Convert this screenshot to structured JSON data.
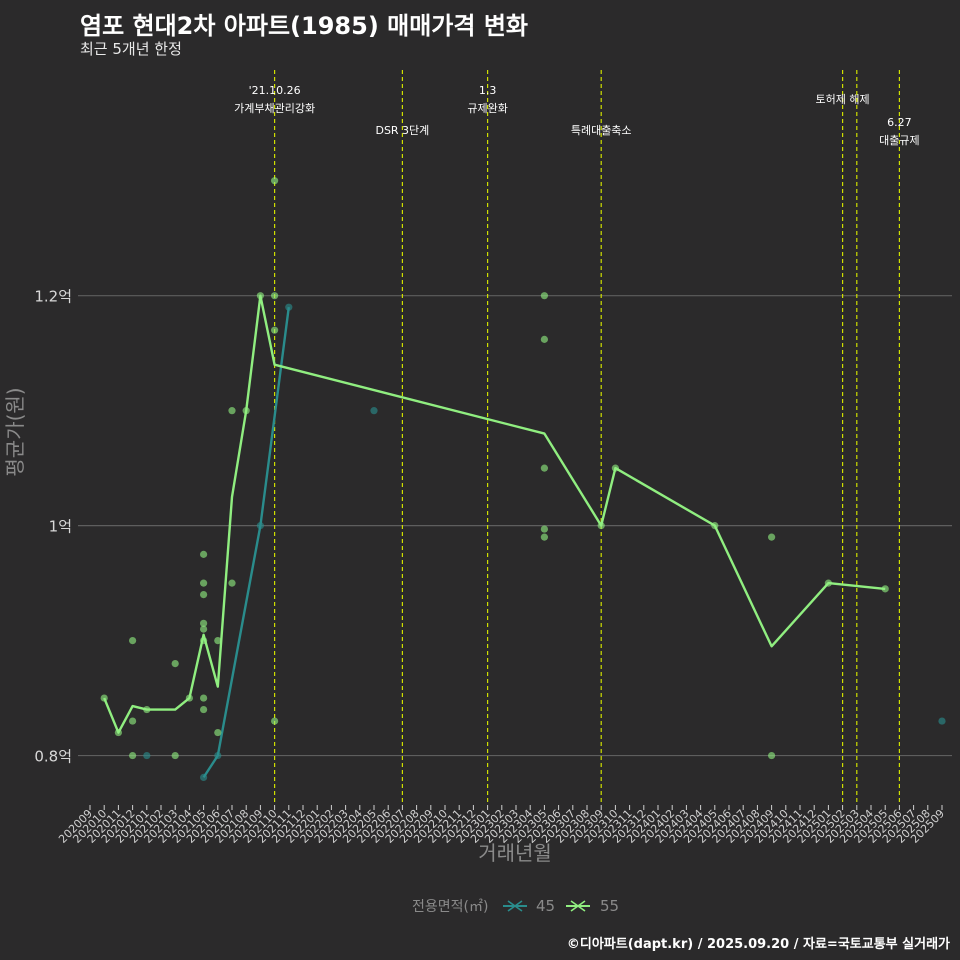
{
  "title": "염포 현대2차 아파트(1985) 매매가격 변화",
  "subtitle": "최근 5개년 한정",
  "caption": "©디아파트(dapt.kr) / 2025.09.20 / 자료=국토교통부 실거래가",
  "colors": {
    "background": "#2b2a2b",
    "grid": "#5e5e5e",
    "event_line": "#cfe000",
    "series_45": "#2a8c8c",
    "series_55": "#90ee80"
  },
  "chart_data": {
    "type": "line",
    "title": "염포 현대2차 아파트(1985) 매매가격 변화",
    "subtitle": "최근 5개년 한정",
    "xlabel": "거래년월",
    "ylabel": "평균가(원)",
    "ylim": [
      0.757,
      1.405
    ],
    "y_ticks": [
      {
        "value": 0.8,
        "label": "0.8억"
      },
      {
        "value": 1.0,
        "label": "1억"
      },
      {
        "value": 1.2,
        "label": "1.2억"
      }
    ],
    "x_categories": [
      "202009",
      "202010",
      "202011",
      "202012",
      "202101",
      "202102",
      "202103",
      "202104",
      "202105",
      "202106",
      "202107",
      "202108",
      "202109",
      "202110",
      "202111",
      "202112",
      "202201",
      "202202",
      "202203",
      "202204",
      "202205",
      "202206",
      "202207",
      "202208",
      "202209",
      "202210",
      "202211",
      "202212",
      "202301",
      "202302",
      "202303",
      "202304",
      "202305",
      "202306",
      "202307",
      "202308",
      "202309",
      "202310",
      "202311",
      "202312",
      "202401",
      "202402",
      "202403",
      "202404",
      "202405",
      "202406",
      "202407",
      "202408",
      "202409",
      "202410",
      "202411",
      "202412",
      "202501",
      "202502",
      "202503",
      "202504",
      "202505",
      "202506",
      "202507",
      "202508",
      "202509"
    ],
    "legend": {
      "title": "전용면적(㎡)",
      "position": "bottom"
    },
    "series": [
      {
        "name": "45",
        "color": "#2a8c8c",
        "line": [
          {
            "x": "202105",
            "y": 0.781
          },
          {
            "x": "202106",
            "y": 0.8
          },
          {
            "x": "202109",
            "y": 1.0
          },
          {
            "x": "202111",
            "y": 1.19
          }
        ],
        "points": [
          {
            "x": "202101",
            "y": 0.8
          },
          {
            "x": "202105",
            "y": 0.781
          },
          {
            "x": "202106",
            "y": 0.8
          },
          {
            "x": "202109",
            "y": 1.0
          },
          {
            "x": "202111",
            "y": 1.19
          },
          {
            "x": "202205",
            "y": 1.1
          },
          {
            "x": "202509",
            "y": 0.83
          }
        ]
      },
      {
        "name": "55",
        "color": "#90ee80",
        "line": [
          {
            "x": "202010",
            "y": 0.85
          },
          {
            "x": "202011",
            "y": 0.82
          },
          {
            "x": "202012",
            "y": 0.843
          },
          {
            "x": "202101",
            "y": 0.84
          },
          {
            "x": "202103",
            "y": 0.84
          },
          {
            "x": "202104",
            "y": 0.85
          },
          {
            "x": "202105",
            "y": 0.905
          },
          {
            "x": "202106",
            "y": 0.86
          },
          {
            "x": "202107",
            "y": 1.025
          },
          {
            "x": "202108",
            "y": 1.1
          },
          {
            "x": "202109",
            "y": 1.2
          },
          {
            "x": "202110",
            "y": 1.14
          },
          {
            "x": "202305",
            "y": 1.08
          },
          {
            "x": "202309",
            "y": 1.0
          },
          {
            "x": "202310",
            "y": 1.05
          },
          {
            "x": "202405",
            "y": 1.0
          },
          {
            "x": "202409",
            "y": 0.895
          },
          {
            "x": "202501",
            "y": 0.95
          },
          {
            "x": "202505",
            "y": 0.945
          }
        ],
        "points": [
          {
            "x": "202010",
            "y": 0.85
          },
          {
            "x": "202011",
            "y": 0.82
          },
          {
            "x": "202012",
            "y": 0.9
          },
          {
            "x": "202012",
            "y": 0.83
          },
          {
            "x": "202012",
            "y": 0.8
          },
          {
            "x": "202101",
            "y": 0.84
          },
          {
            "x": "202103",
            "y": 0.88
          },
          {
            "x": "202103",
            "y": 0.8
          },
          {
            "x": "202104",
            "y": 0.85
          },
          {
            "x": "202105",
            "y": 0.975
          },
          {
            "x": "202105",
            "y": 0.95
          },
          {
            "x": "202105",
            "y": 0.94
          },
          {
            "x": "202105",
            "y": 0.915
          },
          {
            "x": "202105",
            "y": 0.91
          },
          {
            "x": "202105",
            "y": 0.9
          },
          {
            "x": "202105",
            "y": 0.85
          },
          {
            "x": "202105",
            "y": 0.84
          },
          {
            "x": "202106",
            "y": 0.9
          },
          {
            "x": "202106",
            "y": 0.82
          },
          {
            "x": "202107",
            "y": 1.1
          },
          {
            "x": "202107",
            "y": 0.95
          },
          {
            "x": "202108",
            "y": 1.1
          },
          {
            "x": "202109",
            "y": 1.2
          },
          {
            "x": "202110",
            "y": 1.3
          },
          {
            "x": "202110",
            "y": 1.2
          },
          {
            "x": "202110",
            "y": 1.17
          },
          {
            "x": "202110",
            "y": 0.83
          },
          {
            "x": "202305",
            "y": 1.2
          },
          {
            "x": "202305",
            "y": 1.162
          },
          {
            "x": "202305",
            "y": 1.05
          },
          {
            "x": "202305",
            "y": 0.997
          },
          {
            "x": "202305",
            "y": 0.99
          },
          {
            "x": "202309",
            "y": 1.0
          },
          {
            "x": "202310",
            "y": 1.05
          },
          {
            "x": "202405",
            "y": 1.0
          },
          {
            "x": "202409",
            "y": 0.99
          },
          {
            "x": "202409",
            "y": 0.8
          },
          {
            "x": "202501",
            "y": 0.95
          },
          {
            "x": "202505",
            "y": 0.945
          }
        ]
      }
    ],
    "events": [
      {
        "x": "202110",
        "lines": [
          "'21.10.26",
          "가계부채관리강화"
        ]
      },
      {
        "x": "202207",
        "lines": [
          "DSR 3단계"
        ]
      },
      {
        "x": "202301",
        "lines": [
          "1.3",
          "규제완화"
        ]
      },
      {
        "x": "202309",
        "lines": [
          "특례대출축소"
        ]
      },
      {
        "x": "202502",
        "lines": [
          "토허제 해제"
        ]
      },
      {
        "x": "202503",
        "lines": []
      },
      {
        "x": "202506",
        "lines": [
          "6.27",
          "대출규제"
        ]
      }
    ]
  }
}
